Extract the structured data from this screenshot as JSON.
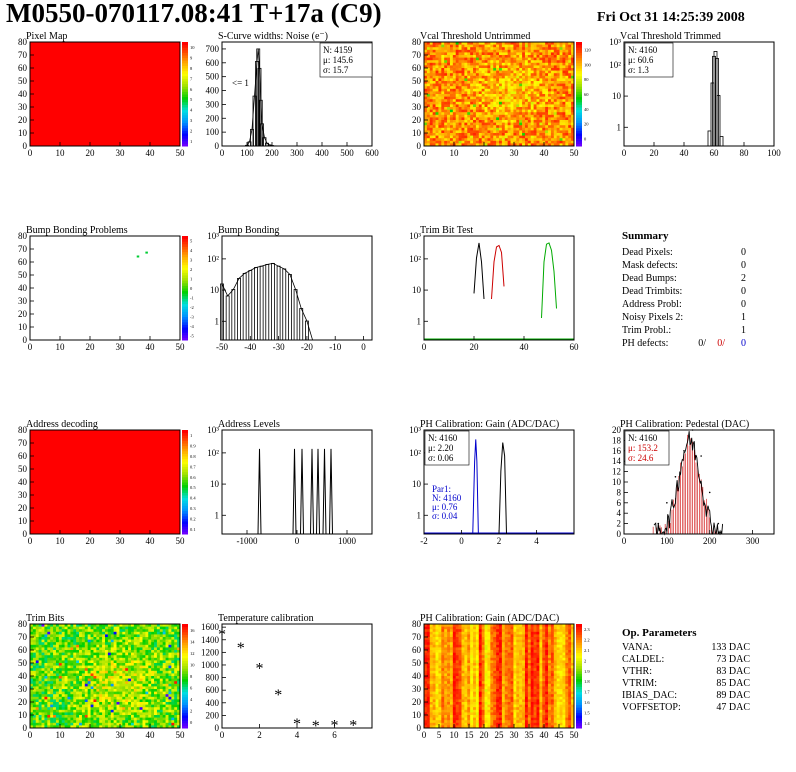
{
  "header": {
    "title": "M0550-070117.08:41 T+17a (C9)",
    "date": "Fri Oct 31 14:25:39 2008"
  },
  "panels": [
    {
      "id": "pixel-map",
      "title": "Pixel Map",
      "type": "heatmap",
      "fill": "#ff0000",
      "x_ticks": [
        "0",
        "10",
        "20",
        "30",
        "40",
        "50"
      ],
      "y_ticks": [
        "0",
        "10",
        "20",
        "30",
        "40",
        "50",
        "60",
        "70",
        "80"
      ],
      "palette_ticks": [
        "1",
        "2",
        "3",
        "4",
        "5",
        "6",
        "7",
        "8",
        "9",
        "10"
      ]
    },
    {
      "id": "scurve-widths",
      "title": "S-Curve widths: Noise (e⁻)",
      "type": "histogram",
      "x_ticks": [
        "0",
        "100",
        "200",
        "300",
        "400",
        "500",
        "600"
      ],
      "y_ticks": [
        "0",
        "100",
        "200",
        "300",
        "400",
        "500",
        "600",
        "700"
      ],
      "stats": [
        "N: 4159",
        "μ: 145.6",
        "σ: 15.7"
      ],
      "annotation": "<= 1"
    },
    {
      "id": "vcal-untrimmed",
      "title": "Vcal Threshold Untrimmed",
      "type": "heatmap",
      "x_ticks": [
        "0",
        "10",
        "20",
        "30",
        "40",
        "50"
      ],
      "y_ticks": [
        "0",
        "10",
        "20",
        "30",
        "40",
        "50",
        "60",
        "70",
        "80"
      ],
      "palette_ticks": [
        "0",
        "20",
        "40",
        "60",
        "80",
        "100",
        "120"
      ]
    },
    {
      "id": "vcal-trimmed",
      "title": "Vcal Threshold Trimmed",
      "type": "histogram",
      "x_ticks": [
        "0",
        "20",
        "40",
        "60",
        "80",
        "100"
      ],
      "y_ticks": [
        "1",
        "10",
        "10²",
        "10³"
      ],
      "stats": [
        "N: 4160",
        "μ: 60.6",
        "σ:  1.3"
      ]
    },
    {
      "id": "bump-problems",
      "title": "Bump Bonding Problems",
      "type": "heatmap",
      "x_ticks": [
        "0",
        "10",
        "20",
        "30",
        "40",
        "50"
      ],
      "y_ticks": [
        "0",
        "10",
        "20",
        "30",
        "40",
        "50",
        "60",
        "70",
        "80"
      ],
      "palette_ticks": [
        "-5",
        "-4",
        "-3",
        "-2",
        "-1",
        "0",
        "1",
        "2",
        "3",
        "4",
        "5"
      ]
    },
    {
      "id": "bump-bonding",
      "title": "Bump Bonding",
      "type": "histogram",
      "x_ticks": [
        "-50",
        "-40",
        "-30",
        "-20",
        "-10",
        "0"
      ],
      "y_ticks": [
        "1",
        "10",
        "10²",
        "10³"
      ]
    },
    {
      "id": "trim-bit-test",
      "title": "Trim Bit Test",
      "type": "histogram",
      "x_ticks": [
        "0",
        "20",
        "40",
        "60"
      ],
      "y_ticks": [
        "1",
        "10",
        "10²",
        "10³"
      ]
    },
    {
      "id": "address-decoding",
      "title": "Address decoding",
      "type": "heatmap",
      "fill": "#ff0000",
      "x_ticks": [
        "0",
        "10",
        "20",
        "30",
        "40",
        "50"
      ],
      "y_ticks": [
        "0",
        "10",
        "20",
        "30",
        "40",
        "50",
        "60",
        "70",
        "80"
      ],
      "palette_ticks": [
        "0.1",
        "0.2",
        "0.3",
        "0.4",
        "0.5",
        "0.6",
        "0.7",
        "0.8",
        "0.9",
        "1"
      ]
    },
    {
      "id": "address-levels",
      "title": "Address Levels",
      "type": "histogram",
      "x_ticks": [
        "-1000",
        "0",
        "1000"
      ],
      "y_ticks": [
        "1",
        "10",
        "10²",
        "10³"
      ]
    },
    {
      "id": "ph-gain",
      "title": "PH Calibration: Gain (ADC/DAC)",
      "type": "histogram",
      "x_ticks": [
        "-2",
        "0",
        "2",
        "4"
      ],
      "y_ticks": [
        "1",
        "10",
        "10²",
        "10³"
      ],
      "stats": [
        "N: 4160",
        "μ: 2.20",
        "σ: 0.06"
      ],
      "par1": [
        "Par1:",
        "N: 4160",
        "μ: 0.76",
        "σ: 0.04"
      ]
    },
    {
      "id": "ph-pedestal",
      "title": "PH Calibration: Pedestal (DAC)",
      "type": "histogram",
      "x_ticks": [
        "0",
        "100",
        "200",
        "300"
      ],
      "y_ticks": [
        "0",
        "2",
        "4",
        "6",
        "8",
        "10",
        "12",
        "14",
        "16",
        "18",
        "20"
      ],
      "stats": [
        "N: 4160",
        "μ: 153.2",
        "σ: 24.6"
      ]
    },
    {
      "id": "trim-bits",
      "title": "Trim Bits",
      "type": "heatmap",
      "x_ticks": [
        "0",
        "10",
        "20",
        "30",
        "40",
        "50"
      ],
      "y_ticks": [
        "0",
        "10",
        "20",
        "30",
        "40",
        "50",
        "60",
        "70",
        "80"
      ],
      "palette_ticks": [
        "0",
        "2",
        "4",
        "6",
        "8",
        "10",
        "12",
        "14",
        "16"
      ]
    },
    {
      "id": "temperature",
      "title": "Temperature calibration",
      "type": "scatter",
      "x_ticks": [
        "0",
        "2",
        "4",
        "6"
      ],
      "y_ticks": [
        "0",
        "200",
        "400",
        "600",
        "800",
        "1000",
        "1200",
        "1400",
        "1600"
      ]
    },
    {
      "id": "ph-gain-map",
      "title": "PH Calibration: Gain (ADC/DAC)",
      "type": "heatmap",
      "x_ticks": [
        "0",
        "5",
        "10",
        "15",
        "20",
        "25",
        "30",
        "35",
        "40",
        "45",
        "50"
      ],
      "y_ticks": [
        "0",
        "10",
        "20",
        "30",
        "40",
        "50",
        "60",
        "70",
        "80"
      ],
      "palette_ticks": [
        "1.4",
        "1.5",
        "1.6",
        "1.7",
        "1.8",
        "1.9",
        "2",
        "2.1",
        "2.2",
        "2.3"
      ]
    }
  ],
  "summary": {
    "title": "Summary",
    "rows": [
      {
        "label": "Dead Pixels:",
        "value": "0"
      },
      {
        "label": "Mask defects:",
        "value": "0"
      },
      {
        "label": "Dead Bumps:",
        "value": "2"
      },
      {
        "label": "Dead Trimbits:",
        "value": "0"
      },
      {
        "label": "Address Probl:",
        "value": "0"
      },
      {
        "label": "Noisy Pixels 2:",
        "value": "1"
      },
      {
        "label": "Trim Probl.:",
        "value": "1"
      }
    ],
    "ph_defects": {
      "label": "PH defects:",
      "values": [
        "0/",
        "0/",
        "0"
      ],
      "colors": [
        "#000000",
        "#cc0000",
        "#0000cc"
      ]
    }
  },
  "op_parameters": {
    "title": "Op. Parameters",
    "rows": [
      {
        "label": "VANA:",
        "value": "133 DAC"
      },
      {
        "label": "CALDEL:",
        "value": "73 DAC"
      },
      {
        "label": "VTHR:",
        "value": "83 DAC"
      },
      {
        "label": "VTRIM:",
        "value": "85 DAC"
      },
      {
        "label": "IBIAS_DAC:",
        "value": "89 DAC"
      },
      {
        "label": "VOFFSETOP:",
        "value": "47 DAC"
      }
    ]
  },
  "chart_data": [
    {
      "type": "heatmap",
      "title": "Pixel Map",
      "xlim": [
        0,
        52
      ],
      "ylim": [
        0,
        80
      ],
      "uniform_value": 10
    },
    {
      "type": "bar",
      "title": "S-Curve widths: Noise (e⁻)",
      "x": [
        100,
        110,
        120,
        130,
        140,
        145,
        150,
        155,
        160,
        170,
        180,
        190,
        200,
        210
      ],
      "values": [
        5,
        30,
        120,
        360,
        610,
        700,
        560,
        330,
        160,
        60,
        20,
        8,
        3,
        1
      ],
      "xlim": [
        0,
        600
      ],
      "ylim": [
        0,
        750
      ]
    },
    {
      "type": "heatmap",
      "title": "Vcal Threshold Untrimmed",
      "xlim": [
        0,
        52
      ],
      "ylim": [
        0,
        80
      ],
      "zlim": [
        0,
        130
      ]
    },
    {
      "type": "bar",
      "title": "Vcal Threshold Trimmed",
      "log_y": true,
      "x": [
        55,
        57,
        59,
        60,
        61,
        62,
        63,
        65,
        80
      ],
      "values": [
        1,
        3,
        100,
        700,
        1000,
        600,
        40,
        2,
        1
      ],
      "xlim": [
        0,
        100
      ]
    },
    {
      "type": "scatter",
      "title": "Bump Bonding Problems",
      "x": [
        37,
        40
      ],
      "y": [
        65,
        68
      ],
      "xlim": [
        0,
        52
      ],
      "ylim": [
        0,
        80
      ]
    },
    {
      "type": "bar",
      "title": "Bump Bonding",
      "log_y": true,
      "x": [
        -50,
        -48,
        -46,
        -44,
        -42,
        -40,
        -38,
        -36,
        -34,
        -32,
        -30,
        -28,
        -26,
        -24,
        -22,
        -20,
        -18,
        -16,
        0
      ],
      "values": [
        60,
        25,
        40,
        90,
        130,
        160,
        200,
        220,
        250,
        270,
        220,
        180,
        120,
        40,
        10,
        4,
        1,
        1,
        1
      ],
      "xlim": [
        -50,
        3
      ]
    },
    {
      "type": "line",
      "title": "Trim Bit Test",
      "log_y": true,
      "series": [
        {
          "color": "#000000",
          "x": [
            20,
            21,
            22,
            23,
            24
          ],
          "values": [
            30,
            400,
            1200,
            300,
            20
          ]
        },
        {
          "color": "#cc0000",
          "x": [
            27,
            28,
            29,
            30,
            31,
            32
          ],
          "values": [
            20,
            300,
            900,
            1000,
            600,
            50
          ]
        },
        {
          "color": "#00aa00",
          "x": [
            47,
            48,
            49,
            50,
            51,
            52,
            53
          ],
          "values": [
            5,
            300,
            1100,
            1200,
            700,
            150,
            10
          ]
        },
        {
          "color": "#0000cc",
          "x": [
            36,
            37
          ],
          "values": [
            1,
            1
          ]
        }
      ],
      "xlim": [
        0,
        60
      ]
    },
    {
      "type": "heatmap",
      "title": "Address decoding",
      "xlim": [
        0,
        52
      ],
      "ylim": [
        0,
        80
      ],
      "uniform_value": 1
    },
    {
      "type": "bar",
      "title": "Address Levels",
      "log_y": true,
      "x": [
        -750,
        -50,
        100,
        300,
        420,
        550,
        680
      ],
      "values": [
        500,
        500,
        500,
        500,
        500,
        500,
        500
      ],
      "xlim": [
        -1500,
        1500
      ]
    },
    {
      "type": "line",
      "title": "PH Calibration: Gain (ADC/DAC)",
      "log_y": true,
      "series": [
        {
          "name": "Par1",
          "color": "#0000cc",
          "x": [
            0.6,
            0.7,
            0.76,
            0.82,
            0.9
          ],
          "values": [
            1,
            200,
            1000,
            200,
            1
          ]
        },
        {
          "color": "#000000",
          "x": [
            2.0,
            2.1,
            2.2,
            2.3,
            2.4
          ],
          "values": [
            1,
            100,
            800,
            300,
            1
          ]
        }
      ],
      "xlim": [
        -2,
        6
      ]
    },
    {
      "type": "bar",
      "title": "PH Calibration: Pedestal (DAC)",
      "x": [
        80,
        100,
        120,
        140,
        160,
        180,
        200,
        220
      ],
      "values": [
        2,
        6,
        11,
        16,
        20,
        15,
        8,
        2
      ],
      "xlim": [
        0,
        350
      ],
      "ylim": [
        0,
        20
      ]
    },
    {
      "type": "heatmap",
      "title": "Trim Bits",
      "xlim": [
        0,
        52
      ],
      "ylim": [
        0,
        80
      ],
      "zlim": [
        0,
        16
      ]
    },
    {
      "type": "scatter",
      "title": "Temperature calibration",
      "x": [
        0,
        1,
        2,
        3,
        4,
        5,
        6,
        7
      ],
      "y": [
        1470,
        1250,
        930,
        510,
        45,
        15,
        25,
        20
      ],
      "xlim": [
        0,
        8
      ],
      "ylim": [
        0,
        1650
      ]
    },
    {
      "type": "heatmap",
      "title": "PH Calibration: Gain (ADC/DAC)",
      "xlim": [
        0,
        52
      ],
      "ylim": [
        0,
        80
      ],
      "zlim": [
        1.4,
        2.3
      ]
    }
  ]
}
